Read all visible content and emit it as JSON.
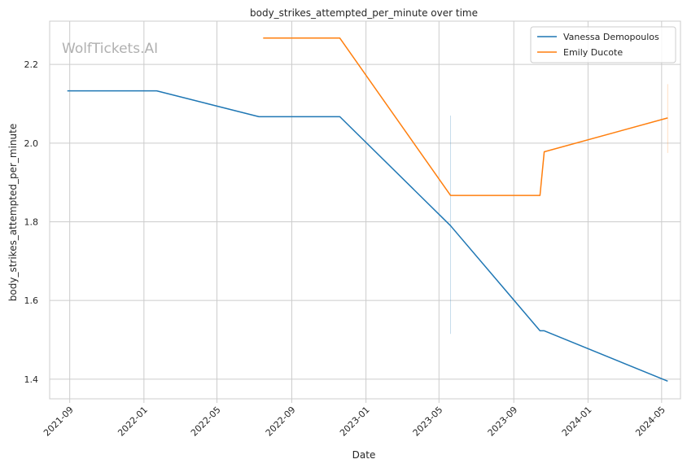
{
  "chart_data": {
    "type": "line",
    "title": "body_strikes_attempted_per_minute over time",
    "xlabel": "Date",
    "ylabel": "body_strikes_attempted_per_minute",
    "watermark": "WolfTickets.AI",
    "xlim": [
      "2021-07-30",
      "2024-06-01"
    ],
    "ylim": [
      1.35,
      2.31
    ],
    "x_ticks": [
      "2021-09-01",
      "2022-01-01",
      "2022-05-01",
      "2022-09-01",
      "2023-01-01",
      "2023-05-01",
      "2023-09-01",
      "2024-01-01",
      "2024-05-01"
    ],
    "x_tick_labels": [
      "2021-09",
      "2022-01",
      "2022-05",
      "2022-09",
      "2023-01",
      "2023-05",
      "2023-09",
      "2024-01",
      "2024-05"
    ],
    "y_ticks": [
      1.4,
      1.6,
      1.8,
      2.0,
      2.2
    ],
    "y_tick_labels": [
      "1.4",
      "1.6",
      "1.8",
      "2.0",
      "2.2"
    ],
    "grid": true,
    "legend_position": "top-right",
    "series": [
      {
        "name": "Vanessa Demopoulos",
        "color": "#1f77b4",
        "x": [
          "2021-08-28",
          "2022-01-22",
          "2022-07-09",
          "2022-11-19",
          "2023-05-20",
          "2023-10-14",
          "2023-10-21",
          "2024-05-11"
        ],
        "y": [
          2.133,
          2.133,
          2.067,
          2.067,
          1.79,
          1.523,
          1.523,
          1.395
        ],
        "error_bar": {
          "x": "2023-05-20",
          "low": 1.515,
          "high": 2.07
        }
      },
      {
        "name": "Emily Ducote",
        "color": "#ff7f0e",
        "x": [
          "2022-07-16",
          "2022-11-19",
          "2023-05-20",
          "2023-10-14",
          "2023-10-21",
          "2024-05-11"
        ],
        "y": [
          2.267,
          2.267,
          1.867,
          1.867,
          1.978,
          2.064
        ],
        "error_bar": {
          "x": "2024-05-11",
          "low": 1.975,
          "high": 2.15
        }
      }
    ]
  }
}
